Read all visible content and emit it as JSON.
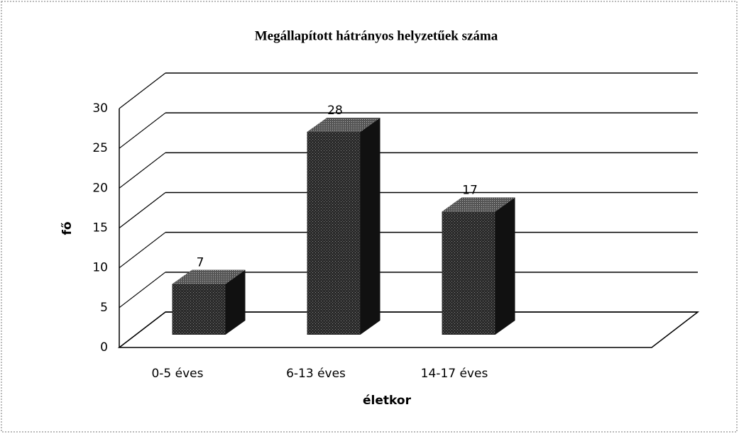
{
  "chart_data": {
    "type": "bar3d",
    "title": "Megállapított hátrányos helyzetűek száma",
    "categories": [
      "0-5 éves",
      "6-13 éves",
      "14-17 éves"
    ],
    "values": [
      7,
      28,
      17
    ],
    "y_label": "fő",
    "x_label": "életkor",
    "color": "#1e1e1e",
    "ylim": [
      0,
      30
    ],
    "yticks": [
      0,
      5,
      10,
      15,
      20,
      25,
      30
    ],
    "grid": true
  }
}
